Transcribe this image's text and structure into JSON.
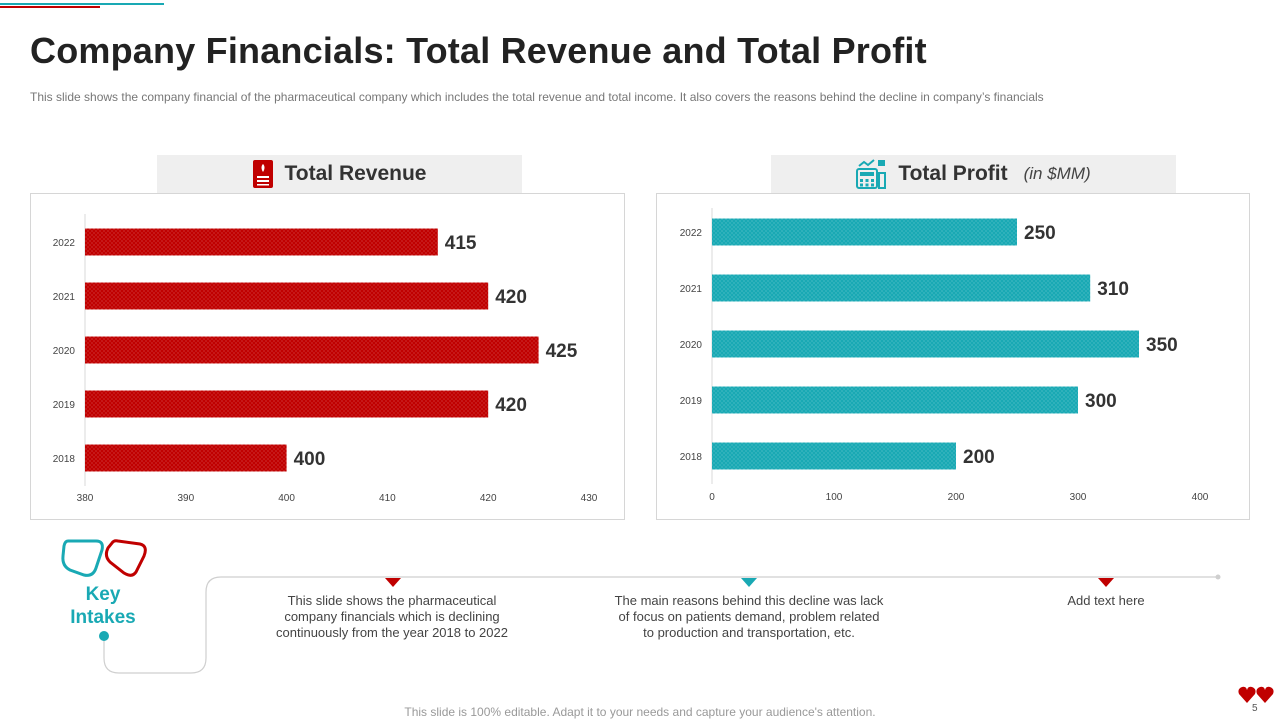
{
  "title": "Company Financials: Total Revenue and Total Profit",
  "subtitle": "This slide shows the company financial of the pharmaceutical company which includes the total revenue  and total income. It also covers the reasons behind the decline in company’s financials",
  "colors": {
    "red": "#c00000",
    "teal": "#19a9b4",
    "header_bg": "#efefef"
  },
  "revenue_header": {
    "label": "Total Revenue",
    "icon": "document-icon"
  },
  "profit_header": {
    "label": "Total Profit",
    "unit": "(in $MM)",
    "icon": "calculator-chart-icon"
  },
  "chart_data": [
    {
      "type": "bar",
      "orientation": "horizontal",
      "title": "Total Revenue",
      "categories": [
        "2022",
        "2021",
        "2020",
        "2019",
        "2018"
      ],
      "values": [
        415,
        420,
        425,
        420,
        400
      ],
      "xlim": [
        380,
        430
      ],
      "xticks": [
        380,
        390,
        400,
        410,
        420,
        430
      ],
      "color": "#c00000"
    },
    {
      "type": "bar",
      "orientation": "horizontal",
      "title": "Total Profit (in $MM)",
      "categories": [
        "2022",
        "2021",
        "2020",
        "2019",
        "2018"
      ],
      "values": [
        250,
        310,
        350,
        300,
        200
      ],
      "xlim": [
        0,
        400
      ],
      "xticks": [
        0,
        100,
        200,
        300,
        400
      ],
      "color": "#19a9b4"
    }
  ],
  "key_intakes": {
    "label_line1": "Key",
    "label_line2": "Intakes",
    "items": [
      {
        "text": "This slide shows the pharmaceutical company financials which is declining continuously from the year 2018 to 2022",
        "color": "#c00000"
      },
      {
        "text": "The main reasons behind this decline was lack of focus on patients demand, problem related to production and transportation, etc.",
        "color": "#19a9b4"
      },
      {
        "text": "Add text here",
        "color": "#c00000"
      }
    ]
  },
  "footer": "This slide is 100% editable. Adapt it to your needs and capture your audience's attention.",
  "page_number": "5"
}
